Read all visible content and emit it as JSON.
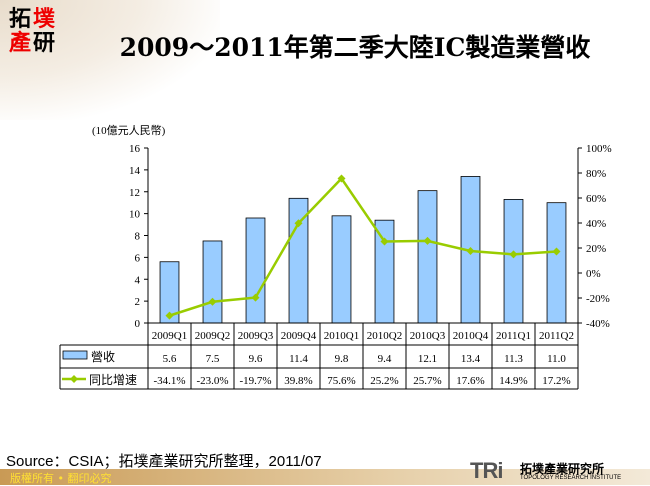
{
  "title": "2009～2011年第二季大陸IC製造業營收",
  "logo_text": "拓墣產研",
  "source": "Source：CSIA；拓墣產業研究所整理，2011/07",
  "footer": {
    "copyright": "版權所有 • 翻印必究",
    "institute_cn": "拓墣產業研究所",
    "institute_en": "TOPOLOGY RESEARCH INSTITUTE",
    "institute_mark": "TRi"
  },
  "colors": {
    "bar": "#99ccff",
    "line": "#99cc00"
  },
  "chart_data": {
    "type": "bar+line",
    "categories": [
      "2009Q1",
      "2009Q2",
      "2009Q3",
      "2009Q4",
      "2010Q1",
      "2010Q2",
      "2010Q3",
      "2010Q4",
      "2011Q1",
      "2011Q2"
    ],
    "y_left_label": "(10億元人民幣)",
    "ylim_left": [
      0,
      16
    ],
    "yticks_left": [
      "0",
      "2",
      "4",
      "6",
      "8",
      "10",
      "12",
      "14",
      "16"
    ],
    "ylim_right": [
      -40,
      100
    ],
    "yticks_right": [
      "-40%",
      "-20%",
      "0%",
      "20%",
      "40%",
      "60%",
      "80%",
      "100%"
    ],
    "grid": false,
    "legend": "data-table",
    "series": [
      {
        "name": "營收",
        "type": "bar",
        "values": [
          5.6,
          7.5,
          9.6,
          11.4,
          9.8,
          9.4,
          12.1,
          13.4,
          11.3,
          11.0
        ],
        "labels": [
          "5.6",
          "7.5",
          "9.6",
          "11.4",
          "9.8",
          "9.4",
          "12.1",
          "13.4",
          "11.3",
          "11.0"
        ]
      },
      {
        "name": "同比增速",
        "type": "line",
        "axis": "right",
        "values": [
          -34.1,
          -23.0,
          -19.7,
          39.8,
          75.6,
          25.2,
          25.7,
          17.6,
          14.9,
          17.2
        ],
        "labels": [
          "-34.1%",
          "-23.0%",
          "-19.7%",
          "39.8%",
          "75.6%",
          "25.2%",
          "25.7%",
          "17.6%",
          "14.9%",
          "17.2%"
        ]
      }
    ]
  }
}
